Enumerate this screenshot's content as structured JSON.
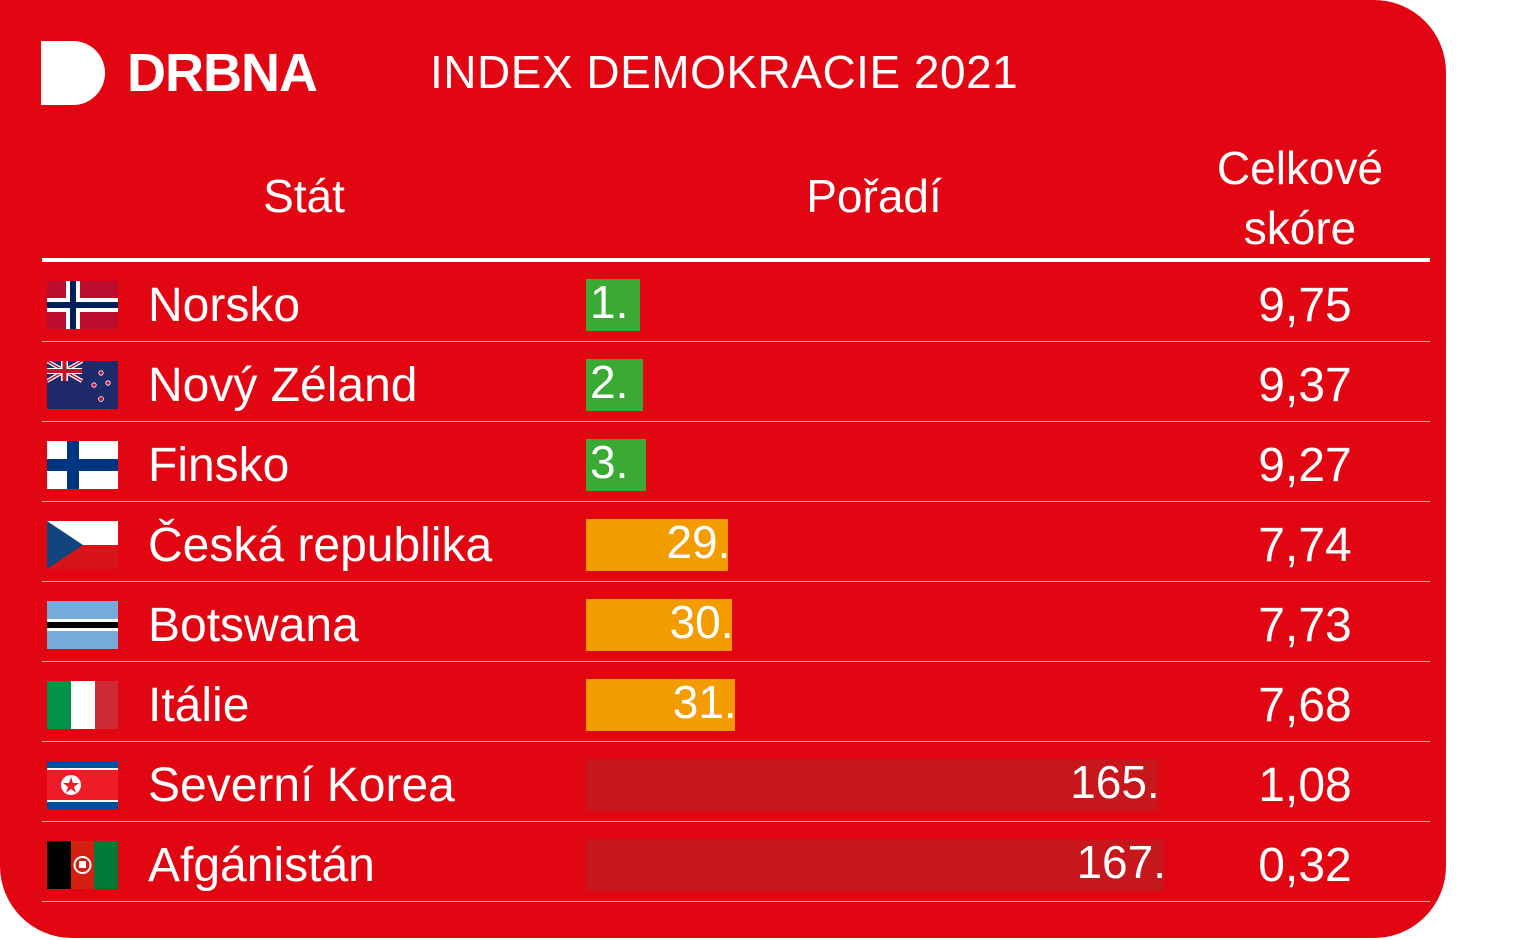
{
  "brand": {
    "name": "DRBNA",
    "icon": "drbna-logo-icon"
  },
  "chart_data": {
    "type": "table",
    "title": "INDEX DEMOKRACIE 2021",
    "columns": [
      "Stát",
      "Pořadí",
      "Celkové skóre"
    ],
    "max_rank": 167,
    "rows": [
      {
        "country": "Norsko",
        "rank": 1,
        "rank_label": "1.",
        "score": "9,75",
        "flag_icon": "norway-flag-icon",
        "bar_color": "#3aaa35"
      },
      {
        "country": "Nový Zéland",
        "rank": 2,
        "rank_label": "2.",
        "score": "9,37",
        "flag_icon": "new-zealand-flag-icon",
        "bar_color": "#3aaa35"
      },
      {
        "country": "Finsko",
        "rank": 3,
        "rank_label": "3.",
        "score": "9,27",
        "flag_icon": "finland-flag-icon",
        "bar_color": "#3aaa35"
      },
      {
        "country": "Česká republika",
        "rank": 29,
        "rank_label": "29.",
        "score": "7,74",
        "flag_icon": "czech-flag-icon",
        "bar_color": "#f39c00"
      },
      {
        "country": "Botswana",
        "rank": 30,
        "rank_label": "30.",
        "score": "7,73",
        "flag_icon": "botswana-flag-icon",
        "bar_color": "#f39c00"
      },
      {
        "country": "Itálie",
        "rank": 31,
        "rank_label": "31.",
        "score": "7,68",
        "flag_icon": "italy-flag-icon",
        "bar_color": "#f39c00"
      },
      {
        "country": "Severní Korea",
        "rank": 165,
        "rank_label": "165.",
        "score": "1,08",
        "flag_icon": "north-korea-flag-icon",
        "bar_color": "#c8161d"
      },
      {
        "country": "Afgánistán",
        "rank": 167,
        "rank_label": "167.",
        "score": "0,32",
        "flag_icon": "afghanistan-flag-icon",
        "bar_color": "#c8161d"
      }
    ]
  },
  "headers": {
    "state": "Stát",
    "rank": "Pořadí",
    "score_line1": "Celkové",
    "score_line2": "skóre"
  },
  "colors": {
    "background": "#e20613",
    "good": "#3aaa35",
    "medium": "#f39c00",
    "bad": "#c8161d"
  }
}
